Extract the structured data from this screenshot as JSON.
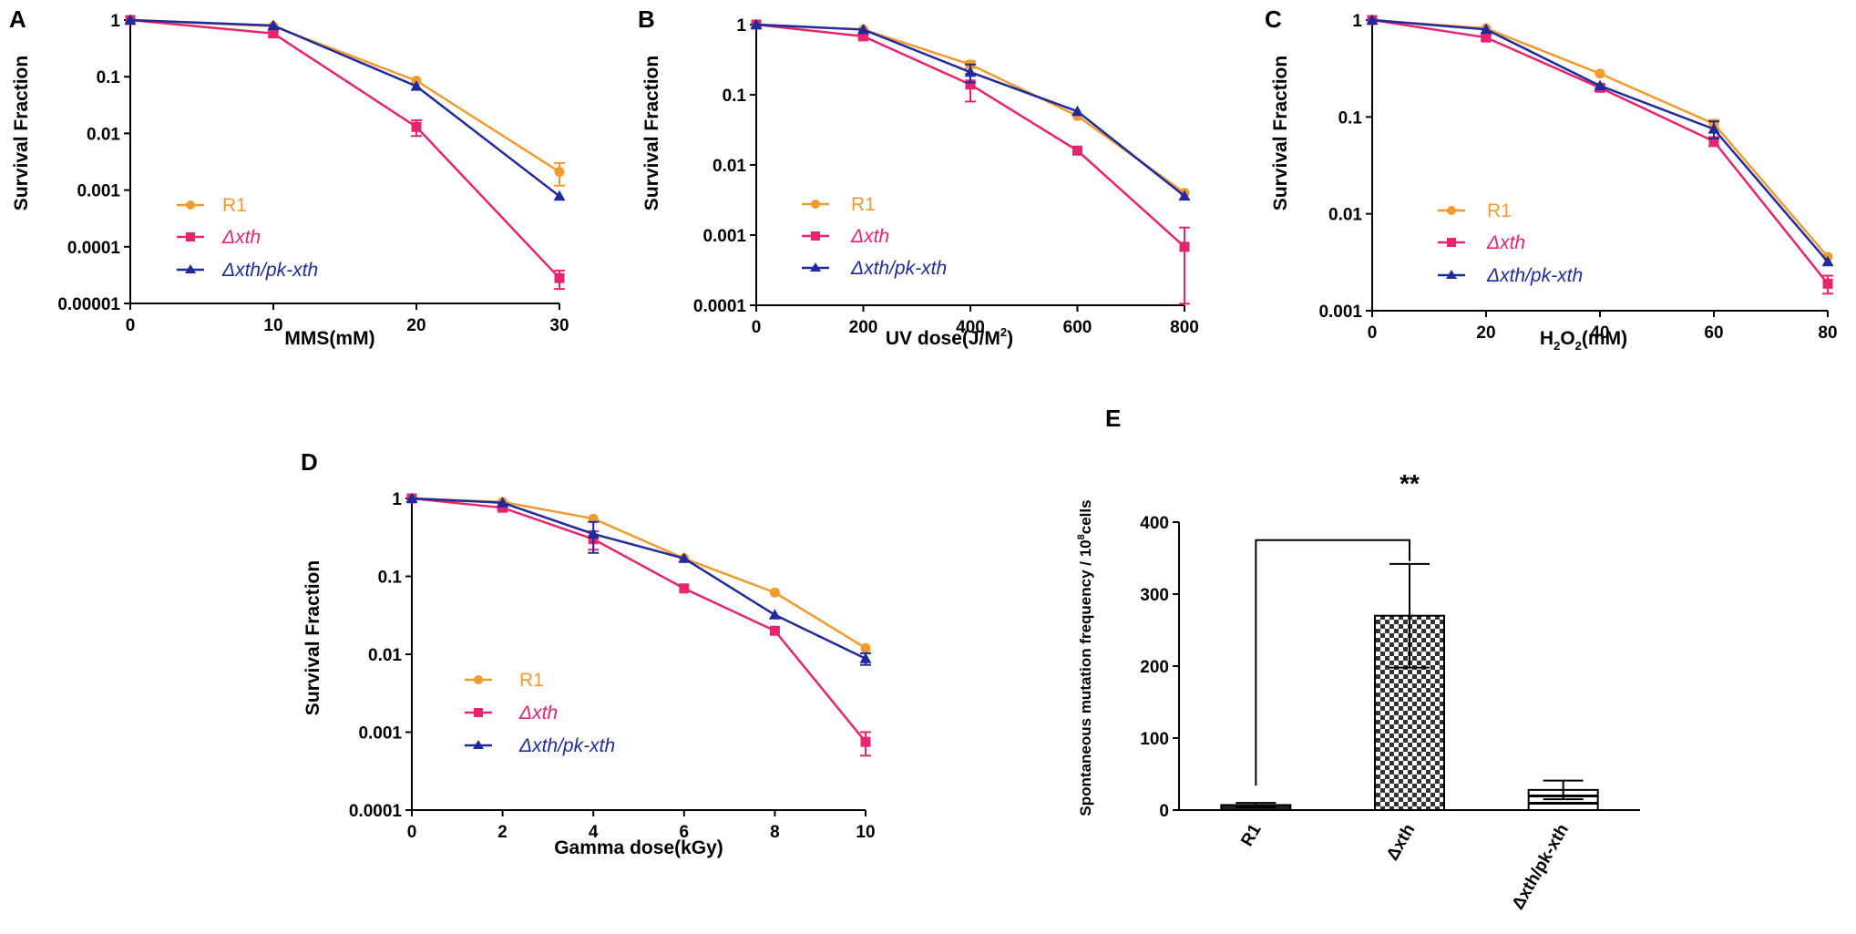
{
  "colors": {
    "r1": "#f39a2e",
    "xth": "#e8246f",
    "comp": "#1f2a9c",
    "axis": "#000000"
  },
  "series_styles": {
    "R1": "circle",
    "Δxth": "square",
    "Δxth/pk-xth": "triangle"
  },
  "chart_data": [
    {
      "id": "A",
      "panel_label": "A",
      "type": "line",
      "yscale": "log",
      "xlabel": "MMS(mM)",
      "ylabel": "Survival Fraction",
      "xlim": [
        0,
        30
      ],
      "ylim": [
        1e-05,
        1
      ],
      "xticks": [
        0,
        10,
        20,
        30
      ],
      "xtick_labels": [
        "0",
        "10",
        "20",
        "30"
      ],
      "yticks": [
        1,
        0.1,
        0.01,
        0.001,
        0.0001,
        1e-05
      ],
      "ytick_labels": [
        "1",
        "0.1",
        "0.01",
        "0.001",
        "0.0001",
        "0.00001"
      ],
      "legend": {
        "position": "left",
        "entries": [
          "R1",
          "Δxth",
          "Δxth/pk-xth"
        ]
      },
      "series": [
        {
          "name": "R1",
          "x": [
            0,
            10,
            20,
            30
          ],
          "values": [
            1,
            0.78,
            0.085,
            0.0021
          ],
          "err": [
            0,
            0,
            0,
            0.0009
          ]
        },
        {
          "name": "Δxth",
          "x": [
            0,
            10,
            20,
            30
          ],
          "values": [
            1,
            0.58,
            0.013,
            2.8e-05
          ],
          "err": [
            0,
            0.06,
            0.004,
            1e-05
          ]
        },
        {
          "name": "Δxth/pk-xth",
          "x": [
            0,
            10,
            20,
            30
          ],
          "values": [
            1,
            0.8,
            0.068,
            0.00078
          ],
          "err": [
            0,
            0,
            0,
            0
          ]
        }
      ]
    },
    {
      "id": "B",
      "panel_label": "B",
      "type": "line",
      "yscale": "log",
      "xlabel": "UV dose(J/M",
      "xlabel_sup": "2",
      "xlabel_after": ")",
      "ylabel": "Survival Fraction",
      "xlim": [
        0,
        800
      ],
      "ylim": [
        0.0001,
        1
      ],
      "xticks": [
        0,
        200,
        400,
        600,
        800
      ],
      "xtick_labels": [
        "0",
        "200",
        "400",
        "600",
        "800"
      ],
      "yticks": [
        1,
        0.1,
        0.01,
        0.001,
        0.0001
      ],
      "ytick_labels": [
        "1",
        "0.1",
        "0.01",
        "0.001",
        "0.0001"
      ],
      "legend": {
        "position": "left",
        "entries": [
          "R1",
          "Δxth",
          "Δxth/pk-xth"
        ]
      },
      "series": [
        {
          "name": "R1",
          "x": [
            0,
            200,
            400,
            600,
            800
          ],
          "values": [
            1,
            0.85,
            0.27,
            0.05,
            0.004
          ],
          "err": [
            0,
            0,
            0.03,
            0,
            0
          ]
        },
        {
          "name": "Δxth",
          "x": [
            0,
            200,
            400,
            600,
            800
          ],
          "values": [
            1,
            0.68,
            0.14,
            0.016,
            0.00068
          ],
          "err": [
            0,
            0.05,
            0.06,
            0,
            0.0006
          ]
        },
        {
          "name": "Δxth/pk-xth",
          "x": [
            0,
            200,
            400,
            600,
            800
          ],
          "values": [
            1,
            0.85,
            0.21,
            0.058,
            0.0036
          ],
          "err": [
            0,
            0,
            0.06,
            0,
            0
          ]
        }
      ]
    },
    {
      "id": "C",
      "panel_label": "C",
      "type": "line",
      "yscale": "log",
      "xlabel": "H",
      "xlabel_sub1": "2",
      "xlabel_mid": "O",
      "xlabel_sub2": "2",
      "xlabel_after": "(mM)",
      "ylabel": "Survival Fraction",
      "xlim": [
        0,
        80
      ],
      "ylim": [
        0.001,
        1
      ],
      "xticks": [
        0,
        20,
        40,
        60,
        80
      ],
      "xtick_labels": [
        "0",
        "20",
        "40",
        "60",
        "80"
      ],
      "yticks": [
        1,
        0.1,
        0.01,
        0.001
      ],
      "ytick_labels": [
        "1",
        "0.1",
        "0.01",
        "0.001"
      ],
      "legend": {
        "position": "left",
        "entries": [
          "R1",
          "Δxth",
          "Δxth/pk-xth"
        ]
      },
      "series": [
        {
          "name": "R1",
          "x": [
            0,
            20,
            40,
            60,
            80
          ],
          "values": [
            1,
            0.82,
            0.28,
            0.085,
            0.0036
          ],
          "err": [
            0,
            0,
            0,
            0.008,
            0
          ]
        },
        {
          "name": "Δxth",
          "x": [
            0,
            20,
            40,
            60,
            80
          ],
          "values": [
            1,
            0.66,
            0.2,
            0.056,
            0.0019
          ],
          "err": [
            0,
            0.04,
            0.015,
            0.006,
            0.0004
          ]
        },
        {
          "name": "Δxth/pk-xth",
          "x": [
            0,
            20,
            40,
            60,
            80
          ],
          "values": [
            1,
            0.8,
            0.21,
            0.075,
            0.0032
          ],
          "err": [
            0,
            0,
            0,
            0.015,
            0
          ]
        }
      ]
    },
    {
      "id": "D",
      "panel_label": "D",
      "type": "line",
      "yscale": "log",
      "xlabel": "Gamma dose(kGy)",
      "ylabel": "Survival Fraction",
      "xlim": [
        0,
        10
      ],
      "ylim": [
        0.0001,
        1
      ],
      "xticks": [
        0,
        2,
        4,
        6,
        8,
        10
      ],
      "xtick_labels": [
        "0",
        "2",
        "4",
        "6",
        "8",
        "10"
      ],
      "yticks": [
        1,
        0.1,
        0.01,
        0.001,
        0.0001
      ],
      "ytick_labels": [
        "1",
        "0.1",
        "0.01",
        "0.001",
        "0.0001"
      ],
      "legend": {
        "position": "left",
        "entries": [
          "R1",
          "Δxth",
          "Δxth/pk-xth"
        ]
      },
      "series": [
        {
          "name": "R1",
          "x": [
            0,
            2,
            4,
            6,
            8,
            10
          ],
          "values": [
            1,
            0.9,
            0.55,
            0.17,
            0.062,
            0.012
          ],
          "err": [
            0,
            0,
            0,
            0,
            0,
            0
          ]
        },
        {
          "name": "Δxth",
          "x": [
            0,
            2,
            4,
            6,
            8,
            10
          ],
          "values": [
            1,
            0.76,
            0.3,
            0.07,
            0.02,
            0.00075
          ],
          "err": [
            0,
            0.04,
            0.08,
            0,
            0,
            0.00025
          ]
        },
        {
          "name": "Δxth/pk-xth",
          "x": [
            0,
            2,
            4,
            6,
            8,
            10
          ],
          "values": [
            1,
            0.88,
            0.35,
            0.17,
            0.032,
            0.0088
          ],
          "err": [
            0,
            0,
            0.15,
            0,
            0,
            0.0015
          ]
        }
      ]
    },
    {
      "id": "E",
      "panel_label": "E",
      "type": "bar",
      "ylabel": "Spontaneous mutation frequency / 10",
      "ylabel_sup": "8",
      "ylabel_after": "cells",
      "categories": [
        "R1",
        "Δxth",
        "Δxth/pk-xth"
      ],
      "values": [
        7,
        270,
        28
      ],
      "err": [
        3,
        72,
        13
      ],
      "patterns": [
        "solid",
        "checker",
        "hstripe"
      ],
      "ylim": [
        0,
        400
      ],
      "yticks": [
        0,
        100,
        200,
        300,
        400
      ],
      "ytick_labels": [
        "0",
        "100",
        "200",
        "300",
        "400"
      ],
      "significance": {
        "from": "R1",
        "to": "Δxth",
        "label": "**"
      }
    }
  ]
}
